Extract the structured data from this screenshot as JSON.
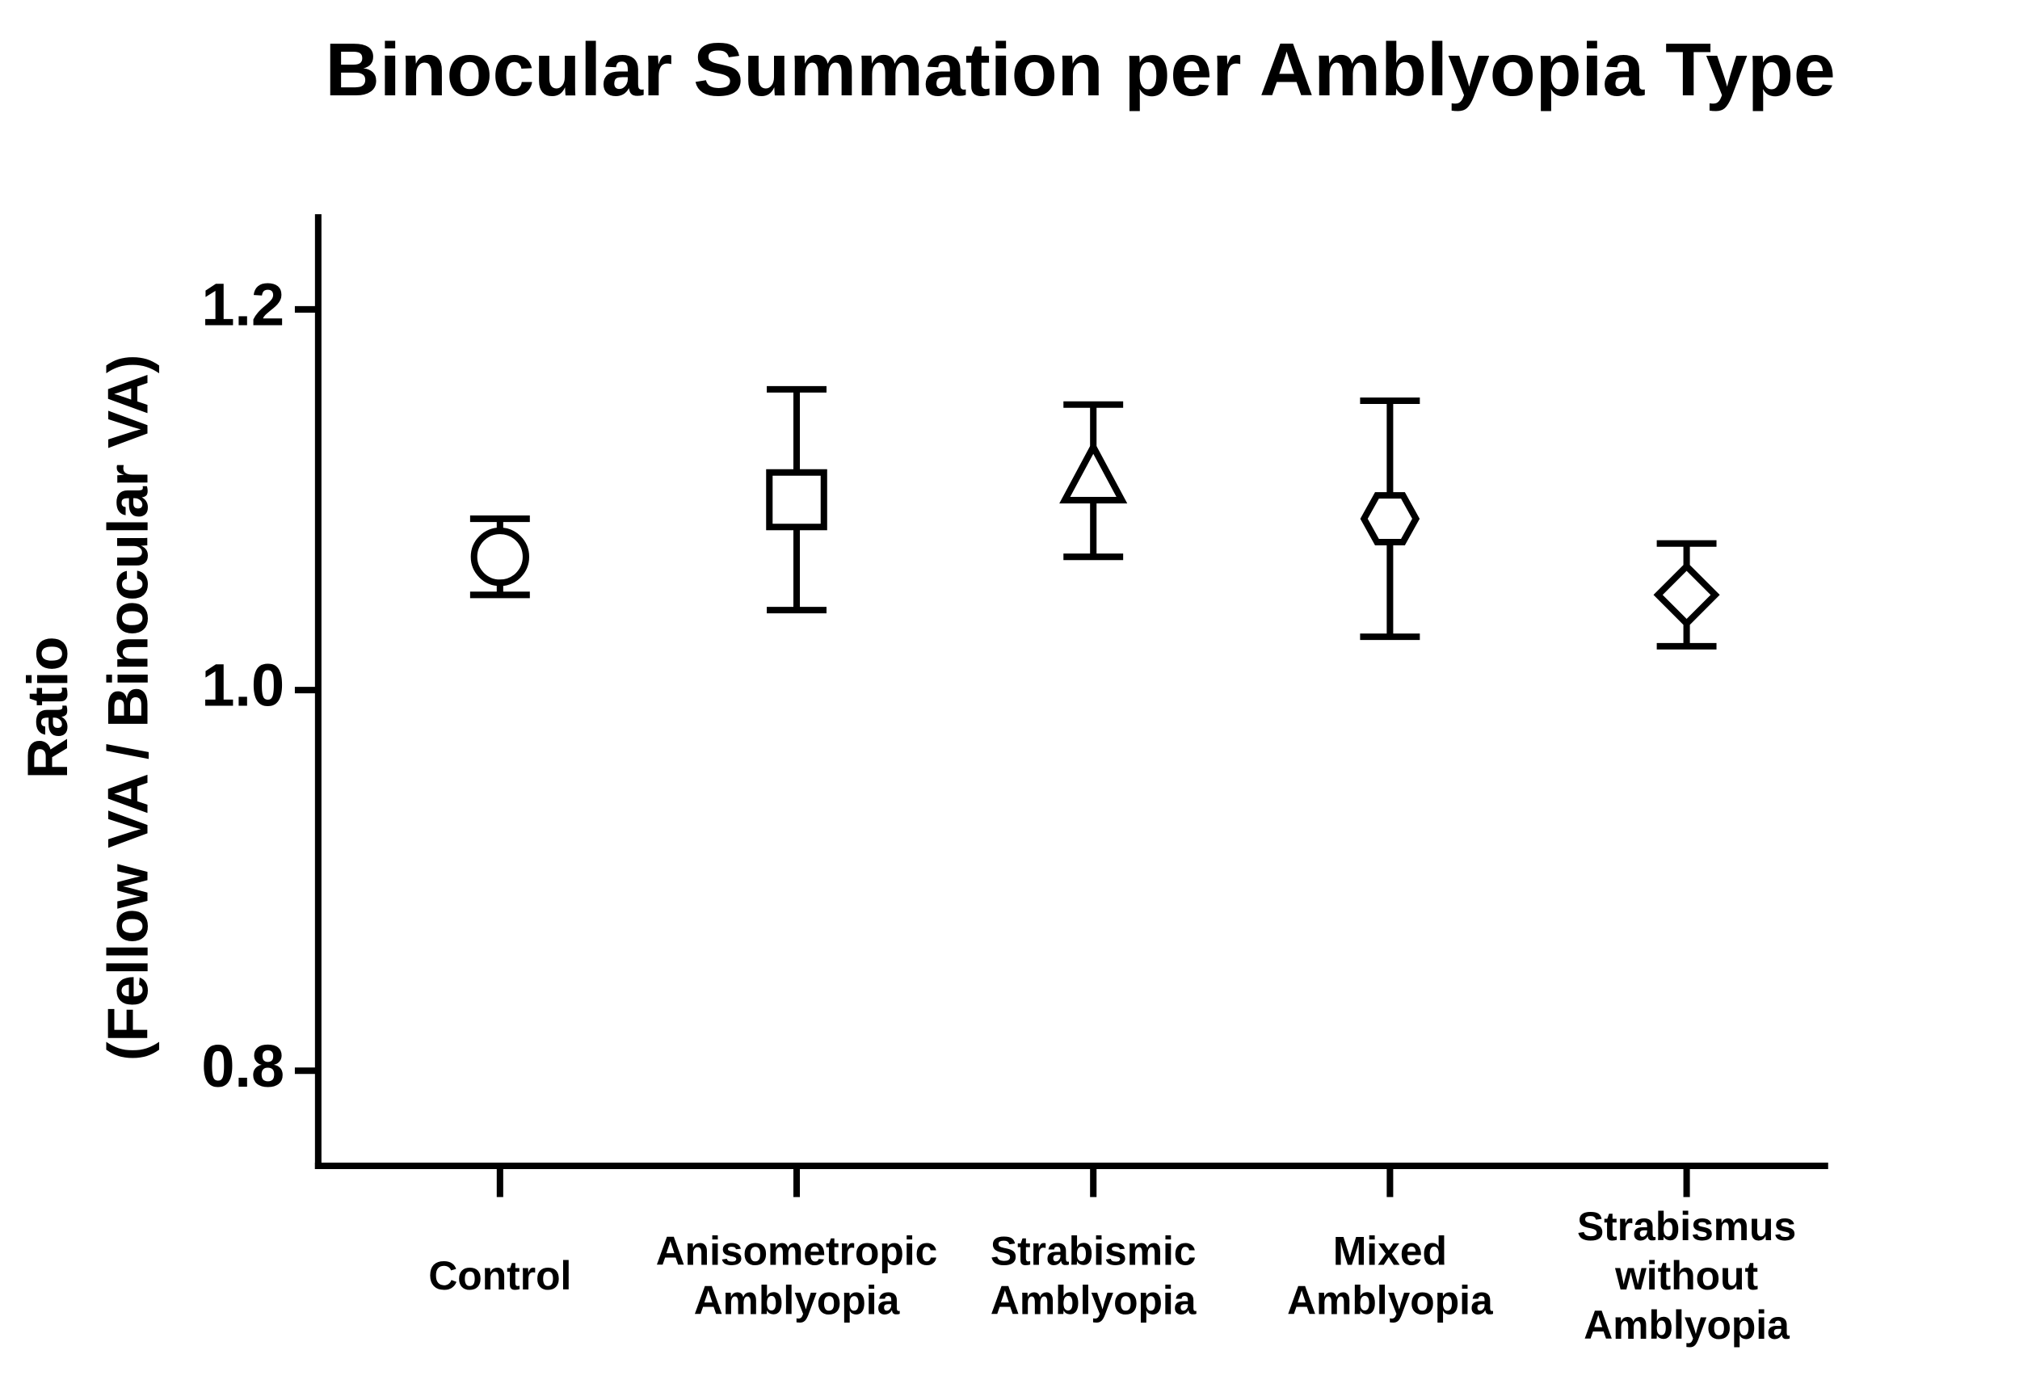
{
  "chart_data": {
    "type": "errorbar",
    "title": "Binocular Summation per Amblyopia Type",
    "y_label": [
      "Ratio",
      "(Fellow VA / Binocular VA)"
    ],
    "categories": [
      [
        "Control"
      ],
      [
        "Anisometropic",
        "Amblyopia"
      ],
      [
        "Strabismic",
        "Amblyopia"
      ],
      [
        "Mixed",
        "Amblyopia"
      ],
      [
        "Strabismus",
        "without",
        "Amblyopia"
      ]
    ],
    "values": [
      1.07,
      1.1,
      1.11,
      1.09,
      1.05
    ],
    "errors": [
      0.02,
      0.058,
      0.04,
      0.062,
      0.027
    ],
    "markers": [
      "circle",
      "square",
      "triangle",
      "hexagon",
      "diamond"
    ],
    "color": "#000000",
    "ylim": [
      0.75,
      1.25
    ],
    "yticks": [
      0.8,
      {
        "value": 1,
        "label": "1.0"
      },
      1.2
    ]
  }
}
